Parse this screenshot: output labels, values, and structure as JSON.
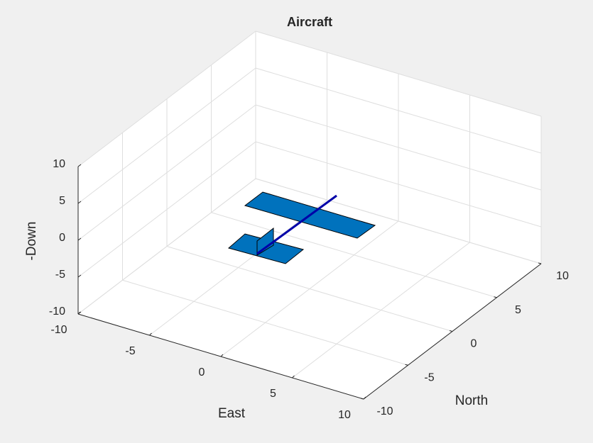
{
  "chart_data": {
    "type": "3d-axes",
    "title": "Aircraft",
    "xlabel": "East",
    "ylabel": "North",
    "zlabel": "-Down",
    "xlim": [
      -10,
      10
    ],
    "ylim": [
      -10,
      10
    ],
    "zlim": [
      -10,
      10
    ],
    "xticks": [
      -10,
      -5,
      0,
      5,
      10
    ],
    "yticks": [
      -10,
      -5,
      0,
      5,
      10
    ],
    "zticks": [
      -10,
      -5,
      0,
      5,
      10
    ],
    "grid": true
  }
}
